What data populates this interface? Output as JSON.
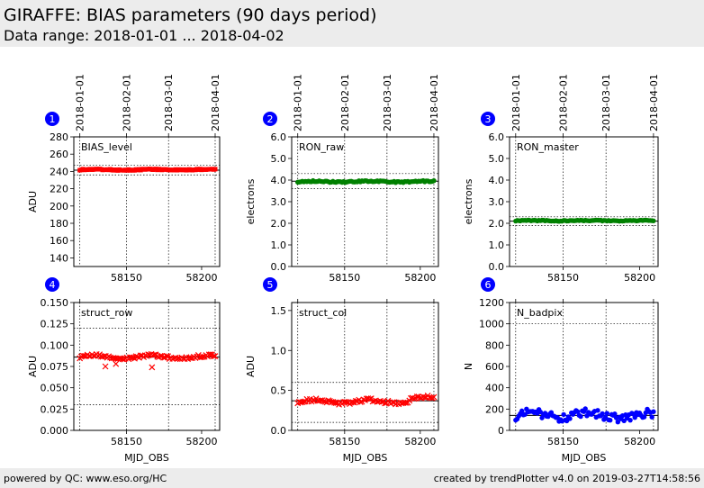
{
  "header": {
    "title": "GIRAFFE: BIAS parameters (90 days period)",
    "subtitle": "Data range: 2018-01-01 ... 2018-04-02"
  },
  "footer": {
    "left": "powered by QC: www.eso.org/HC",
    "right": "created by trendPlotter v4.0 on 2019-03-27T14:58:56"
  },
  "date_ticks": {
    "labels": [
      "2018-01-01",
      "2018-02-01",
      "2018-03-01",
      "2018-04-01"
    ],
    "mjd": [
      58119,
      58150,
      58178,
      58209
    ]
  },
  "colors": {
    "red": "#ff0000",
    "green": "#008000",
    "blue": "#0000ff",
    "badge": "#0000ff"
  },
  "chart_data": [
    {
      "id": 1,
      "type": "scatter",
      "title": "BIAS_level",
      "ylabel": "ADU",
      "xlabel": "",
      "marker": "square",
      "color": "#ff0000",
      "ylim": [
        130,
        280
      ],
      "yticks": [
        140,
        160,
        180,
        200,
        220,
        240,
        260,
        280
      ],
      "yticklabels": [
        "140",
        "160",
        "180",
        "200",
        "220",
        "240",
        "260",
        "280"
      ],
      "xlim": [
        58115,
        58212
      ],
      "xticks": [
        58150,
        58200
      ],
      "xticklabels": [
        "58150",
        "58200"
      ],
      "ref_line": 241.5,
      "tol_lines": [
        247,
        236
      ],
      "series": [
        {
          "x_start": 58119,
          "x_end": 58209,
          "count": 90,
          "baseline": 242,
          "noise": 0.6,
          "wave": 0.4
        }
      ]
    },
    {
      "id": 2,
      "type": "scatter",
      "title": "RON_raw",
      "ylabel": "electrons",
      "xlabel": "",
      "marker": "circle",
      "color": "#008000",
      "ylim": [
        0,
        6
      ],
      "yticks": [
        0,
        1,
        2,
        3,
        4,
        5,
        6
      ],
      "yticklabels": [
        "0.0",
        "1.0",
        "2.0",
        "3.0",
        "4.0",
        "5.0",
        "6.0"
      ],
      "xlim": [
        58115,
        58212
      ],
      "xticks": [
        58150,
        58200
      ],
      "xticklabels": [
        "58150",
        "58200"
      ],
      "ref_line": 3.95,
      "tol_lines": [
        4.3,
        3.6
      ],
      "series": [
        {
          "x_start": 58119,
          "x_end": 58209,
          "count": 90,
          "baseline": 3.93,
          "noise": 0.03,
          "wave": 0.02
        }
      ]
    },
    {
      "id": 3,
      "type": "scatter",
      "title": "RON_master",
      "ylabel": "electrons",
      "xlabel": "",
      "marker": "circle",
      "color": "#008000",
      "ylim": [
        0,
        6
      ],
      "yticks": [
        0,
        1,
        2,
        3,
        4,
        5,
        6
      ],
      "yticklabels": [
        "0.0",
        "1.0",
        "2.0",
        "3.0",
        "4.0",
        "5.0",
        "6.0"
      ],
      "xlim": [
        58115,
        58212
      ],
      "xticks": [
        58150,
        58200
      ],
      "xticklabels": [
        "58150",
        "58200"
      ],
      "ref_line": 2.1,
      "tol_lines": [
        2.3,
        1.9
      ],
      "series": [
        {
          "x_start": 58119,
          "x_end": 58209,
          "count": 90,
          "baseline": 2.12,
          "noise": 0.02,
          "wave": 0.01
        }
      ]
    },
    {
      "id": 4,
      "type": "scatter",
      "title": "struct_row",
      "ylabel": "ADU",
      "xlabel": "MJD_OBS",
      "marker": "x",
      "color": "#ff0000",
      "ylim": [
        0,
        0.15
      ],
      "yticks": [
        0,
        0.025,
        0.05,
        0.075,
        0.1,
        0.125,
        0.15
      ],
      "yticklabels": [
        "0.000",
        "0.025",
        "0.050",
        "0.075",
        "0.100",
        "0.125",
        "0.150"
      ],
      "xlim": [
        58115,
        58212
      ],
      "xticks": [
        58150,
        58200
      ],
      "xticklabels": [
        "58150",
        "58200"
      ],
      "ref_line": 0.086,
      "tol_lines": [
        0.12,
        0.03
      ],
      "series": [
        {
          "x_start": 58119,
          "x_end": 58209,
          "count": 90,
          "baseline": 0.086,
          "noise": 0.0015,
          "wave": 0.002,
          "outliers": [
            [
              58136,
              0.075
            ],
            [
              58143,
              0.078
            ],
            [
              58167,
              0.074
            ]
          ]
        }
      ]
    },
    {
      "id": 5,
      "type": "scatter",
      "title": "struct_col",
      "ylabel": "ADU",
      "xlabel": "MJD_OBS",
      "marker": "x",
      "color": "#ff0000",
      "ylim": [
        0,
        1.6
      ],
      "yticks": [
        0,
        0.5,
        1.0,
        1.5
      ],
      "yticklabels": [
        "0.0",
        "0.5",
        "1.0",
        "1.5"
      ],
      "xlim": [
        58115,
        58212
      ],
      "xticks": [
        58150,
        58200
      ],
      "xticklabels": [
        "58150",
        "58200"
      ],
      "ref_line": 0.37,
      "tol_lines": [
        0.6,
        0.1
      ],
      "series": [
        {
          "x_start": 58119,
          "x_end": 58209,
          "count": 90,
          "baseline": 0.36,
          "noise": 0.02,
          "wave": 0.02,
          "rise": 0.04
        }
      ]
    },
    {
      "id": 6,
      "type": "scatter",
      "title": "N_badpix",
      "ylabel": "N",
      "xlabel": "MJD_OBS",
      "marker": "circle",
      "color": "#0000ff",
      "ylim": [
        0,
        1200
      ],
      "yticks": [
        0,
        200,
        400,
        600,
        800,
        1000,
        1200
      ],
      "yticklabels": [
        "0",
        "200",
        "400",
        "600",
        "800",
        "1000",
        "1200"
      ],
      "xlim": [
        58115,
        58212
      ],
      "xticks": [
        58150,
        58200
      ],
      "xticklabels": [
        "58150",
        "58200"
      ],
      "ref_line": 140,
      "tol_lines": [
        1000
      ],
      "series": [
        {
          "x_start": 58119,
          "x_end": 58209,
          "count": 90,
          "baseline": 140,
          "noise": 45,
          "wave": 20
        }
      ]
    }
  ]
}
